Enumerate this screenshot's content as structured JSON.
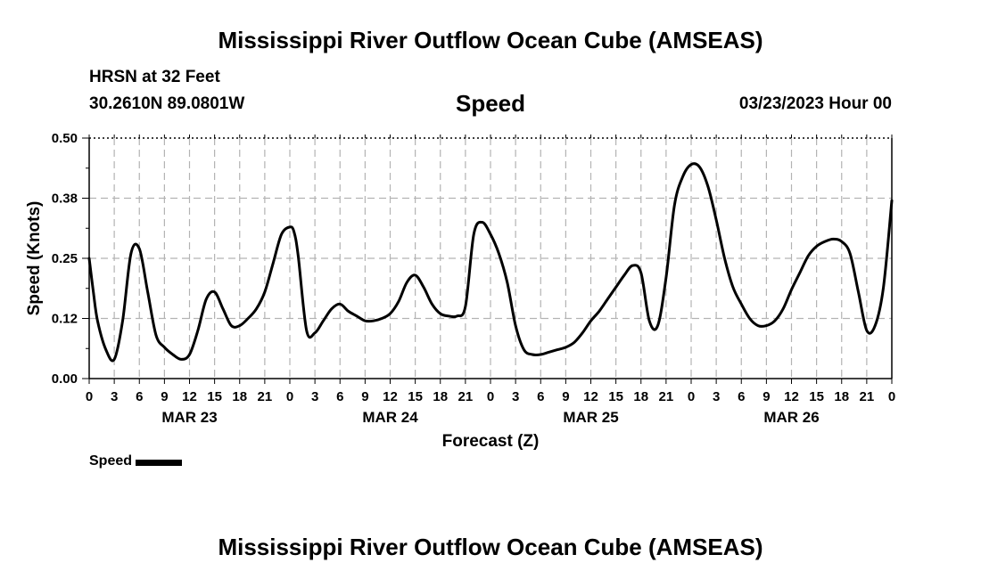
{
  "header": {
    "title": "Mississippi River Outflow Ocean Cube (AMSEAS)",
    "station": "HRSN at 32 Feet",
    "coordinates": "30.2610N  89.0801W",
    "variable": "Speed",
    "forecast_start": "03/23/2023 Hour 00"
  },
  "footer": {
    "title": "Mississippi River Outflow Ocean Cube (AMSEAS)"
  },
  "legend": {
    "label": "Speed"
  },
  "chart_data": {
    "type": "line",
    "title": "Speed",
    "xlabel": "Forecast (Z)",
    "ylabel": "Speed (Knots)",
    "ylim": [
      0,
      0.5
    ],
    "xlim": [
      0,
      96
    ],
    "x_unit": "hours from 03/23/2023 00Z",
    "yticks": [
      0.0,
      0.125,
      0.25,
      0.375,
      0.5
    ],
    "ytick_labels": [
      "0.00",
      "0.12",
      "0.25",
      "0.38",
      "0.50"
    ],
    "xtick_labels": [
      "0",
      "3",
      "6",
      "9",
      "12",
      "15",
      "18",
      "21",
      "0",
      "3",
      "6",
      "9",
      "12",
      "15",
      "18",
      "21",
      "0",
      "3",
      "6",
      "9",
      "12",
      "15",
      "18",
      "21",
      "0",
      "3",
      "6",
      "9",
      "12",
      "15",
      "18",
      "21",
      "0"
    ],
    "day_labels": [
      {
        "label": "MAR 23",
        "hour": 12
      },
      {
        "label": "MAR 24",
        "hour": 36
      },
      {
        "label": "MAR 25",
        "hour": 60
      },
      {
        "label": "MAR 26",
        "hour": 84
      }
    ],
    "grid": true,
    "legend_position": "bottom-left",
    "series": [
      {
        "name": "Speed",
        "color": "#000000",
        "x": [
          0,
          0.5,
          1,
          2,
          3,
          4,
          5,
          6,
          7,
          8,
          9,
          10,
          11,
          12,
          13,
          14,
          15,
          16,
          17,
          18,
          19,
          20,
          21,
          22,
          23,
          24,
          24.5,
          25,
          26,
          27,
          28,
          29,
          30,
          31,
          32,
          33,
          34,
          35,
          36,
          37,
          38,
          39,
          40,
          41,
          42,
          43,
          44,
          45,
          46,
          47,
          48,
          49,
          50,
          51,
          52,
          53,
          54,
          55,
          56,
          57,
          58,
          59,
          60,
          61,
          62,
          63,
          64,
          65,
          66,
          67,
          68,
          69,
          70,
          71,
          72,
          73,
          74,
          75,
          76,
          77,
          78,
          79,
          80,
          81,
          82,
          83,
          84,
          85,
          86,
          87,
          88,
          89,
          90,
          91,
          92,
          93,
          94,
          95,
          96
        ],
        "values": [
          0.25,
          0.18,
          0.12,
          0.06,
          0.04,
          0.12,
          0.26,
          0.27,
          0.18,
          0.09,
          0.065,
          0.05,
          0.04,
          0.05,
          0.1,
          0.165,
          0.18,
          0.145,
          0.11,
          0.11,
          0.125,
          0.145,
          0.18,
          0.24,
          0.3,
          0.315,
          0.305,
          0.255,
          0.1,
          0.095,
          0.12,
          0.145,
          0.155,
          0.14,
          0.13,
          0.12,
          0.12,
          0.125,
          0.135,
          0.16,
          0.2,
          0.215,
          0.19,
          0.155,
          0.135,
          0.13,
          0.13,
          0.15,
          0.3,
          0.325,
          0.3,
          0.26,
          0.2,
          0.11,
          0.06,
          0.05,
          0.05,
          0.055,
          0.06,
          0.065,
          0.075,
          0.095,
          0.12,
          0.14,
          0.165,
          0.19,
          0.215,
          0.235,
          0.22,
          0.12,
          0.11,
          0.21,
          0.36,
          0.42,
          0.445,
          0.44,
          0.4,
          0.33,
          0.25,
          0.19,
          0.155,
          0.125,
          0.11,
          0.11,
          0.12,
          0.145,
          0.185,
          0.22,
          0.255,
          0.275,
          0.285,
          0.29,
          0.285,
          0.26,
          0.18,
          0.1,
          0.11,
          0.19,
          0.37
        ]
      }
    ]
  }
}
